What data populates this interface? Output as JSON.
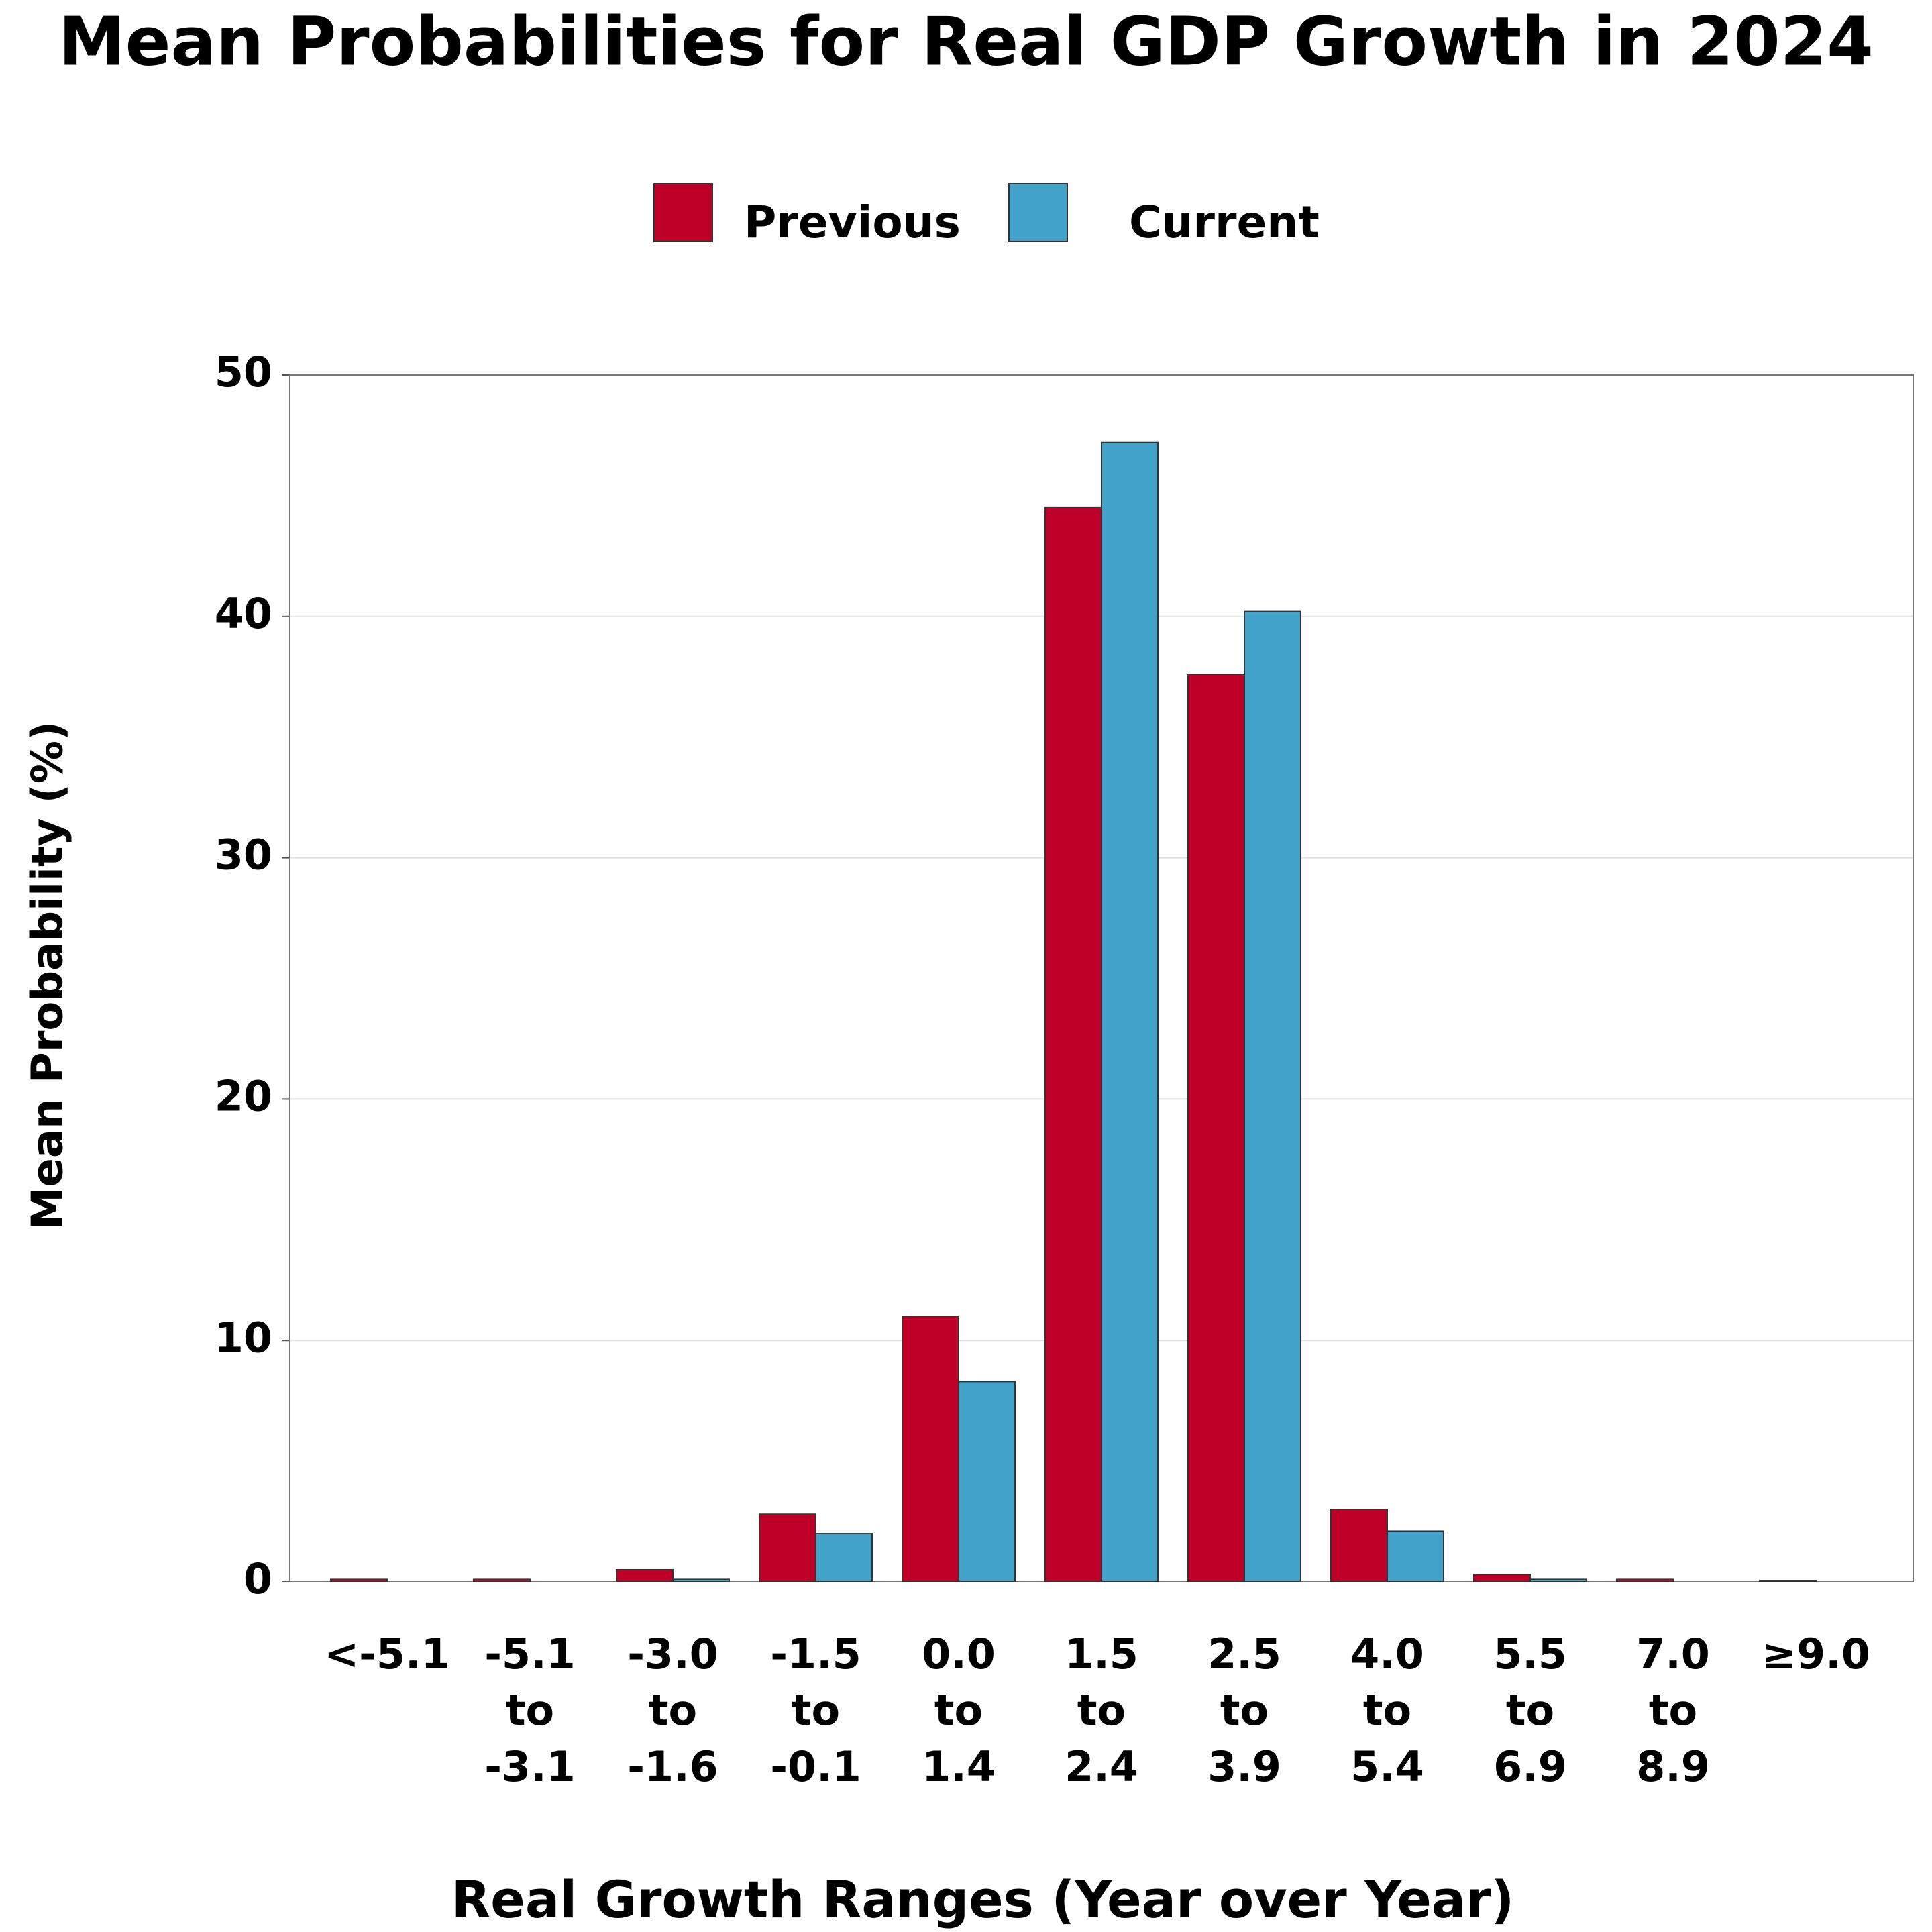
{
  "chart_data": {
    "type": "bar",
    "title": "Mean Probabilities for Real GDP Growth in 2024",
    "x_label": "Real Growth Ranges (Year over Year)",
    "y_label": "Mean Probability (%)",
    "categories": [
      [
        "<-5.1"
      ],
      [
        "-5.1",
        "to",
        "-3.1"
      ],
      [
        "-3.0",
        "to",
        "-1.6"
      ],
      [
        "-1.5",
        "to",
        "-0.1"
      ],
      [
        "0.0",
        "to",
        "1.4"
      ],
      [
        "1.5",
        "to",
        "2.4"
      ],
      [
        "2.5",
        "to",
        "3.9"
      ],
      [
        "4.0",
        "to",
        "5.4"
      ],
      [
        "5.5",
        "to",
        "6.9"
      ],
      [
        "7.0",
        "to",
        "8.9"
      ],
      [
        "≥9.0"
      ]
    ],
    "series": [
      {
        "name": "Previous",
        "color": "#be0028",
        "values": [
          0.1,
          0.1,
          0.5,
          2.8,
          11.0,
          44.5,
          37.6,
          3.0,
          0.3,
          0.1,
          0.05
        ]
      },
      {
        "name": "Current",
        "color": "#43a2ca",
        "values": [
          0.0,
          0.0,
          0.1,
          2.0,
          8.3,
          47.2,
          40.2,
          2.1,
          0.1,
          0.0,
          0.0
        ]
      }
    ],
    "ylim": [
      0,
      50
    ],
    "yticks": [
      0,
      10,
      20,
      30,
      40,
      50
    ],
    "grid": true
  }
}
